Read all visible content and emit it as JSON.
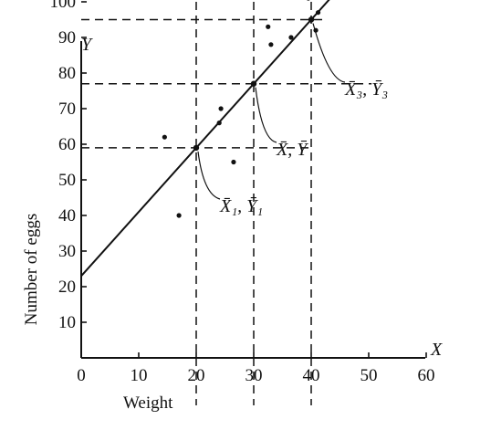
{
  "chart_data": {
    "type": "scatter",
    "xlabel": "Weight",
    "ylabel": "Number of eggs",
    "x_axis_letter": "X",
    "y_axis_letter": "Y",
    "xlim": [
      0,
      60
    ],
    "ylim": [
      0,
      100
    ],
    "x_ticks": [
      0,
      10,
      20,
      30,
      40,
      50,
      60
    ],
    "y_ticks": [
      10,
      20,
      30,
      40,
      50,
      60,
      70,
      80,
      90,
      100
    ],
    "grid": false,
    "points": [
      {
        "x": 14.5,
        "y": 62
      },
      {
        "x": 17,
        "y": 40
      },
      {
        "x": 24,
        "y": 66
      },
      {
        "x": 24.3,
        "y": 70
      },
      {
        "x": 26.5,
        "y": 55
      },
      {
        "x": 32.5,
        "y": 93
      },
      {
        "x": 33,
        "y": 88
      },
      {
        "x": 36.5,
        "y": 90
      },
      {
        "x": 39.5,
        "y": 101
      },
      {
        "x": 40.8,
        "y": 92
      },
      {
        "x": 41.2,
        "y": 97
      }
    ],
    "regression_line": {
      "intercept": 23,
      "slope": 1.8
    },
    "means": [
      {
        "x": 20,
        "y": 59,
        "label": "X̄₁, Ȳ₁"
      },
      {
        "x": 30,
        "y": 77,
        "label": "X̄, Ȳ"
      },
      {
        "x": 40,
        "y": 95,
        "label": "X̄₃, Ȳ₃"
      }
    ]
  }
}
